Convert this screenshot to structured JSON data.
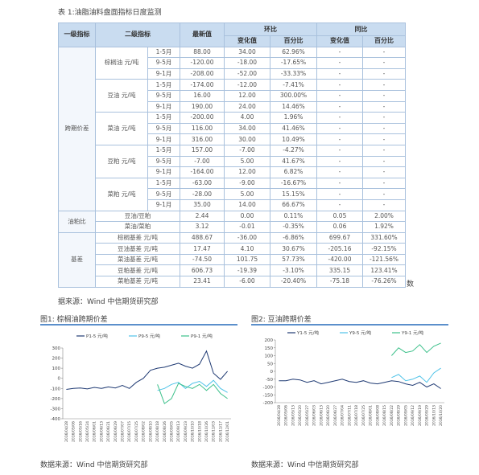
{
  "title": "表 1:油脂油料盘面指标日度监测",
  "table": {
    "header": {
      "c1": "一级指标",
      "c2": "二级指标",
      "c3": "最新值",
      "c4": "环比",
      "c5": "同比",
      "sub": [
        "变化值",
        "百分比",
        "变化值",
        "百分比"
      ]
    },
    "sections": [
      {
        "name": "跨期价差",
        "items": [
          {
            "name": "棕榈油 元/吨",
            "rows": [
              [
                "1-5月",
                "88.00",
                "34.00",
                "62.96%",
                "-",
                "-"
              ],
              [
                "9-5月",
                "-120.00",
                "-18.00",
                "-17.65%",
                "-",
                "-"
              ],
              [
                "9-1月",
                "-208.00",
                "-52.00",
                "-33.33%",
                "-",
                "-"
              ]
            ]
          },
          {
            "name": "豆油 元/吨",
            "rows": [
              [
                "1-5月",
                "-174.00",
                "-12.00",
                "-7.41%",
                "-",
                "-"
              ],
              [
                "9-5月",
                "16.00",
                "12.00",
                "300.00%",
                "-",
                "-"
              ],
              [
                "9-1月",
                "190.00",
                "24.00",
                "14.46%",
                "-",
                "-"
              ]
            ]
          },
          {
            "name": "菜油 元/吨",
            "rows": [
              [
                "1-5月",
                "-200.00",
                "4.00",
                "1.96%",
                "-",
                "-"
              ],
              [
                "9-5月",
                "116.00",
                "34.00",
                "41.46%",
                "-",
                "-"
              ],
              [
                "9-1月",
                "316.00",
                "30.00",
                "10.49%",
                "-",
                "-"
              ]
            ]
          },
          {
            "name": "豆粕 元/吨",
            "rows": [
              [
                "1-5月",
                "157.00",
                "-7.00",
                "-4.27%",
                "-",
                "-"
              ],
              [
                "9-5月",
                "-7.00",
                "5.00",
                "41.67%",
                "-",
                "-"
              ],
              [
                "9-1月",
                "-164.00",
                "12.00",
                "6.82%",
                "-",
                "-"
              ]
            ]
          },
          {
            "name": "菜粕 元/吨",
            "rows": [
              [
                "1-5月",
                "-63.00",
                "-9.00",
                "-16.67%",
                "-",
                "-"
              ],
              [
                "9-5月",
                "-28.00",
                "5.00",
                "15.15%",
                "-",
                "-"
              ],
              [
                "9-1月",
                "35.00",
                "14.00",
                "66.67%",
                "-",
                "-"
              ]
            ]
          }
        ]
      },
      {
        "name": "油粕比",
        "rows": [
          [
            "豆油/豆粕",
            "2.44",
            "0.00",
            "0.11%",
            "0.05",
            "2.00%"
          ],
          [
            "菜油/菜粕",
            "3.12",
            "-0.01",
            "-0.35%",
            "0.06",
            "1.92%"
          ]
        ]
      },
      {
        "name": "基差",
        "rows": [
          [
            "棕榈基差 元/吨",
            "488.67",
            "-36.00",
            "-6.86%",
            "699.67",
            "331.60%"
          ],
          [
            "豆油基差 元/吨",
            "17.47",
            "4.10",
            "30.67%",
            "-205.16",
            "-92.15%"
          ],
          [
            "菜油基差 元/吨",
            "-74.50",
            "101.75",
            "57.73%",
            "-420.00",
            "-121.56%"
          ],
          [
            "豆粕基差 元/吨",
            "606.73",
            "-19.39",
            "-3.10%",
            "335.15",
            "123.41%"
          ],
          [
            "菜粕基差 元/吨",
            "23.41",
            "-6.00",
            "-20.40%",
            "-75.18",
            "-76.26%"
          ]
        ]
      }
    ]
  },
  "table_overflow": "数",
  "table_source": "据来源：Wind 中信期货研究部",
  "figures": [
    {
      "caption": "图1: 棕榈油跨期价差",
      "source": "数据来源：Wind 中信期货研究部",
      "chart_data": {
        "type": "line",
        "categories": [
          "2016/04/28",
          "2016/05/06",
          "2016/05/16",
          "2016/05/24",
          "2016/06/01",
          "2016/06/13",
          "2016/06/21",
          "2016/06/29",
          "2016/07/07",
          "2016/07/15",
          "2016/07/25",
          "2016/08/02",
          "2016/08/10",
          "2016/08/18",
          "2016/08/26",
          "2016/09/05",
          "2016/09/13",
          "2016/09/23",
          "2016/10/10",
          "2016/10/18",
          "2016/10/26",
          "2016/11/03",
          "2016/11/17",
          "2016/12/01"
        ],
        "series": [
          {
            "name": "P1-5 元/吨",
            "color": "#1f3a73",
            "values": [
              -110,
              -100,
              -95,
              -105,
              -90,
              -100,
              -85,
              -95,
              -70,
              -100,
              -40,
              0,
              80,
              100,
              110,
              130,
              150,
              120,
              100,
              140,
              270,
              50,
              -10,
              70
            ]
          },
          {
            "name": "P9-5 元/吨",
            "color": "#4fc3e8",
            "values": [
              null,
              null,
              null,
              null,
              null,
              null,
              null,
              null,
              null,
              null,
              null,
              null,
              null,
              -120,
              -100,
              -60,
              -40,
              -100,
              -50,
              -30,
              -80,
              -20,
              -100,
              -140
            ]
          },
          {
            "name": "P9-1 元/吨",
            "color": "#3cc08a",
            "values": [
              null,
              null,
              null,
              null,
              null,
              null,
              null,
              null,
              null,
              null,
              null,
              null,
              null,
              -60,
              -250,
              -200,
              -50,
              -80,
              -100,
              -60,
              -120,
              -60,
              -150,
              -200
            ]
          }
        ],
        "ylim": [
          -400,
          300
        ],
        "yticks": [
          300,
          200,
          100,
          0,
          -100,
          -200,
          -300,
          -400
        ]
      }
    },
    {
      "caption": "图2: 豆油跨期价差",
      "source": "数据来源：Wind 中信期货研究部",
      "chart_data": {
        "type": "line",
        "categories": [
          "2016/04/28",
          "2016/05/06",
          "2016/05/13",
          "2016/05/20",
          "2016/05/27",
          "2016/06/03",
          "2016/06/13",
          "2016/06/20",
          "2016/06/27",
          "2016/07/04",
          "2016/07/11",
          "2016/07/18",
          "2016/07/25",
          "2016/08/01",
          "2016/08/08",
          "2016/08/15",
          "2016/08/22",
          "2016/08/29",
          "2016/09/05",
          "2016/09/12",
          "2016/09/19",
          "2016/09/29",
          "2016/10/13",
          "2016/10/20"
        ],
        "series": [
          {
            "name": "Y1-5 元/吨",
            "color": "#1f3a73",
            "values": [
              -60,
              -60,
              -50,
              -55,
              -70,
              -60,
              -80,
              -70,
              -60,
              -50,
              -65,
              -70,
              -60,
              -75,
              -80,
              -70,
              -60,
              -65,
              -80,
              -90,
              -70,
              -100,
              -80,
              -110
            ]
          },
          {
            "name": "Y9-5 元/吨",
            "color": "#4fc3e8",
            "values": [
              null,
              null,
              null,
              null,
              null,
              null,
              null,
              null,
              null,
              null,
              null,
              null,
              null,
              null,
              null,
              null,
              -40,
              -20,
              -60,
              -50,
              -30,
              -70,
              -10,
              20
            ]
          },
          {
            "name": "Y9-1 元/吨",
            "color": "#3cc08a",
            "values": [
              null,
              null,
              null,
              null,
              null,
              null,
              null,
              null,
              null,
              null,
              null,
              null,
              null,
              null,
              null,
              null,
              100,
              150,
              120,
              130,
              170,
              120,
              160,
              180
            ]
          }
        ],
        "ylim": [
          -200,
          200
        ],
        "yticks": [
          200,
          150,
          100,
          50,
          0,
          -50,
          -100,
          -150,
          -200
        ]
      }
    }
  ]
}
